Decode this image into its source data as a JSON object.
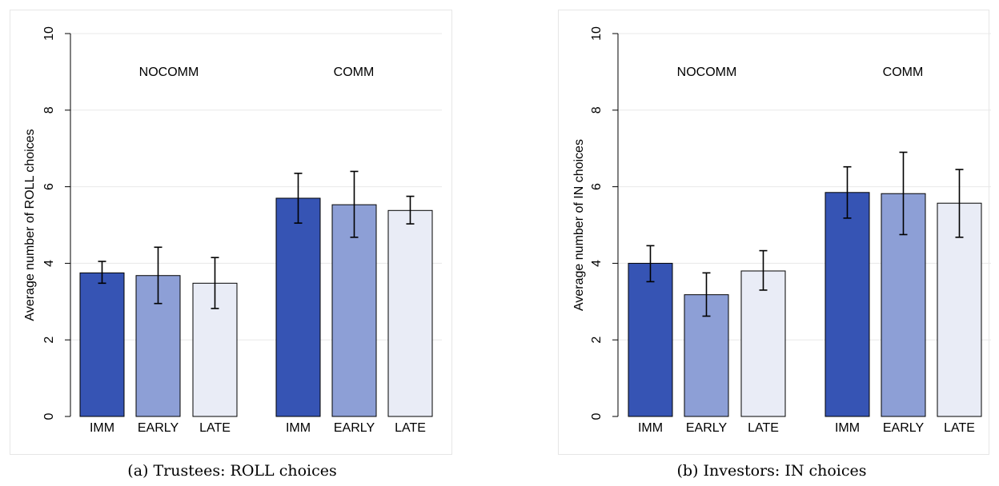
{
  "colors": {
    "imm": "#3654b4",
    "early": "#8d9fd6",
    "late": "#e9ecf6",
    "frame": "#e6e6e6",
    "grid": "#e8e8e8"
  },
  "chart_data": [
    {
      "type": "bar",
      "caption": "(a) Trustees: ROLL choices",
      "ylabel": "Average number of ROLL choices",
      "ylim": [
        0,
        10
      ],
      "yticks": [
        0,
        2,
        4,
        6,
        8,
        10
      ],
      "grid": true,
      "groups": [
        {
          "label": "NOCOMM",
          "bars": [
            {
              "category": "IMM",
              "value": 3.75,
              "ci": [
                3.48,
                4.05
              ]
            },
            {
              "category": "EARLY",
              "value": 3.68,
              "ci": [
                2.95,
                4.42
              ]
            },
            {
              "category": "LATE",
              "value": 3.48,
              "ci": [
                2.82,
                4.15
              ]
            }
          ]
        },
        {
          "label": "COMM",
          "bars": [
            {
              "category": "IMM",
              "value": 5.7,
              "ci": [
                5.05,
                6.35
              ]
            },
            {
              "category": "EARLY",
              "value": 5.53,
              "ci": [
                4.68,
                6.4
              ]
            },
            {
              "category": "LATE",
              "value": 5.38,
              "ci": [
                5.03,
                5.75
              ]
            }
          ]
        }
      ]
    },
    {
      "type": "bar",
      "caption": "(b) Investors: IN choices",
      "ylabel": "Average number of IN choices",
      "ylim": [
        0,
        10
      ],
      "yticks": [
        0,
        2,
        4,
        6,
        8,
        10
      ],
      "grid": true,
      "groups": [
        {
          "label": "NOCOMM",
          "bars": [
            {
              "category": "IMM",
              "value": 4.0,
              "ci": [
                3.52,
                4.46
              ]
            },
            {
              "category": "EARLY",
              "value": 3.18,
              "ci": [
                2.62,
                3.75
              ]
            },
            {
              "category": "LATE",
              "value": 3.8,
              "ci": [
                3.3,
                4.33
              ]
            }
          ]
        },
        {
          "label": "COMM",
          "bars": [
            {
              "category": "IMM",
              "value": 5.85,
              "ci": [
                5.18,
                6.52
              ]
            },
            {
              "category": "EARLY",
              "value": 5.82,
              "ci": [
                4.75,
                6.9
              ]
            },
            {
              "category": "LATE",
              "value": 5.57,
              "ci": [
                4.68,
                6.45
              ]
            }
          ]
        }
      ]
    }
  ]
}
